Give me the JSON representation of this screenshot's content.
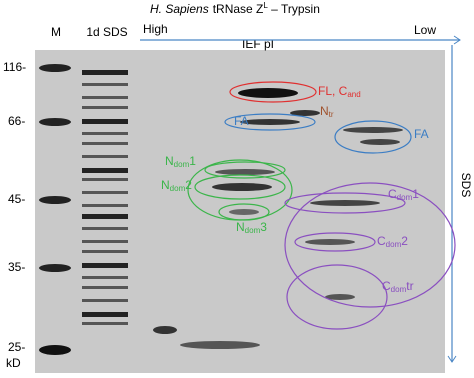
{
  "header": {
    "species": "H. Sapiens",
    "title_main": "tRNase Z",
    "title_sup": "L",
    "title_suffix": " – Trypsin"
  },
  "lanes": {
    "marker": "M",
    "sds1d": "1d SDS",
    "high": "High",
    "ief": "IEF pI",
    "low": "Low",
    "sds": "SDS"
  },
  "mw_labels": [
    "116-",
    "66-",
    "45-",
    "35-",
    "25-"
  ],
  "mw_unit": "kD",
  "annotations": {
    "fl": {
      "main": "FL, C",
      "sub": "and"
    },
    "ntr": {
      "main": "N",
      "sub": "tr"
    },
    "fa_left": "FA",
    "fa_right": "FA",
    "ndom1": {
      "main": "N",
      "sub": "dom",
      "suffix": "1"
    },
    "ndom2": {
      "main": "N",
      "sub": "dom",
      "suffix": "2"
    },
    "ndom3": {
      "main": "N",
      "sub": "dom",
      "suffix": "3"
    },
    "cdom1": {
      "main": "C",
      "sub": "dom",
      "suffix": "1"
    },
    "cdom2": {
      "main": "C",
      "sub": "dom",
      "suffix": "2"
    },
    "cdomtr": {
      "main": "C",
      "sub": "dom",
      "suffix": "tr"
    }
  }
}
